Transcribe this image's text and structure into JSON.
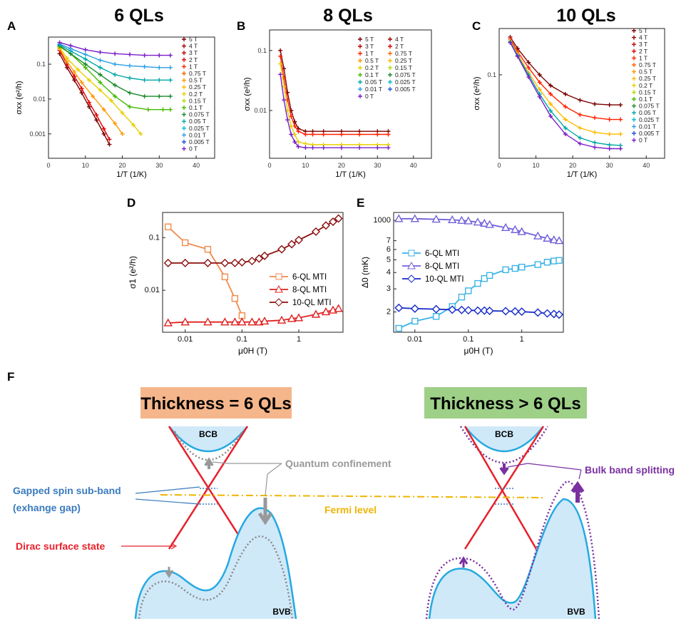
{
  "colors": {
    "fields": {
      "5 T": "#7a0000",
      "4 T": "#a00000",
      "3 T": "#c00000",
      "2 T": "#e00000",
      "1 T": "#ff2200",
      "0.75 T": "#ff6600",
      "0.5 T": "#ff9900",
      "0.25 T": "#ffbb00",
      "0.2 T": "#e8d000",
      "0.15 T": "#aee000",
      "0.1 T": "#44bb00",
      "0.075 T": "#1a8a2a",
      "0.05 T": "#00a8a8",
      "0.025 T": "#00bcd4",
      "0.01 T": "#2aa0e8",
      "0.005 T": "#2255dd",
      "0 T": "#7a1fc8"
    },
    "s6": "#f08a4b",
    "s8": "#e02020",
    "s10": "#8b0d0d",
    "d6": "#3ab4e6",
    "d8": "#7060d8",
    "d10": "#1428c8",
    "cone": "#e8202a",
    "band": "#26a9e0",
    "bandFill": "#cfe9f9",
    "dotted": "#888888",
    "purple": "#7a30a0",
    "fermi": "#f0b400",
    "gap": "#3a7bbf",
    "banner6": "#f5b68b",
    "banner10": "#9ed088"
  },
  "panels": {
    "A": {
      "label": "A",
      "title": "6 QLs"
    },
    "B": {
      "label": "B",
      "title": "8 QLs"
    },
    "C": {
      "label": "C",
      "title": "10 QLs"
    },
    "D": {
      "label": "D"
    },
    "E": {
      "label": "E"
    },
    "F": {
      "label": "F"
    }
  },
  "chart_data": [
    {
      "id": "A",
      "type": "scatter",
      "title": "6 QLs",
      "xlabel": "1/T (1/K)",
      "ylabel": "σxx (e²/h)",
      "yscale": "log",
      "xlim": [
        0,
        45
      ],
      "ylim": [
        0.0002,
        0.6
      ],
      "xticks": [
        "0",
        "10",
        "20",
        "30",
        "40"
      ],
      "yticks": [
        "0.001",
        "0.01",
        "0.1"
      ],
      "legend": [
        "5 T",
        "4 T",
        "3 T",
        "2 T",
        "1 T",
        "0.75 T",
        "0.5 T",
        "0.25 T",
        "0.2 T",
        "0.15 T",
        "0.1 T",
        "0.075 T",
        "0.05 T",
        "0.025 T",
        "0.01 T",
        "0.005 T",
        "0 T"
      ],
      "series": [
        {
          "name": "5 T",
          "x": [
            3,
            5,
            7,
            9,
            11,
            13,
            15,
            16.5
          ],
          "y": [
            0.2,
            0.08,
            0.035,
            0.015,
            0.006,
            0.0025,
            0.001,
            0.0005
          ]
        },
        {
          "name": "2 T",
          "x": [
            3,
            5,
            7,
            9,
            11,
            13,
            15,
            16.5
          ],
          "y": [
            0.25,
            0.1,
            0.045,
            0.02,
            0.008,
            0.0035,
            0.0014,
            0.0007
          ]
        },
        {
          "name": "0.5 T",
          "x": [
            3,
            5,
            7,
            9,
            12,
            15,
            18,
            20
          ],
          "y": [
            0.28,
            0.12,
            0.06,
            0.03,
            0.012,
            0.005,
            0.002,
            0.001
          ]
        },
        {
          "name": "0.2 T",
          "x": [
            3,
            5,
            8,
            11,
            14,
            17,
            20,
            23,
            25
          ],
          "y": [
            0.3,
            0.15,
            0.07,
            0.035,
            0.018,
            0.009,
            0.004,
            0.0018,
            0.001
          ]
        },
        {
          "name": "0.1 T",
          "x": [
            3,
            6,
            10,
            14,
            18,
            22,
            27,
            31,
            33
          ],
          "y": [
            0.32,
            0.2,
            0.08,
            0.03,
            0.012,
            0.006,
            0.005,
            0.005,
            0.005
          ]
        },
        {
          "name": "0.075 T",
          "x": [
            3,
            6,
            10,
            14,
            18,
            22,
            26,
            30,
            33
          ],
          "y": [
            0.34,
            0.2,
            0.1,
            0.05,
            0.025,
            0.015,
            0.012,
            0.012,
            0.012
          ]
        },
        {
          "name": "0.05 T",
          "x": [
            3,
            6,
            10,
            14,
            18,
            22,
            26,
            30,
            33
          ],
          "y": [
            0.36,
            0.24,
            0.14,
            0.08,
            0.05,
            0.04,
            0.035,
            0.035,
            0.035
          ]
        },
        {
          "name": "0.01 T",
          "x": [
            3,
            6,
            10,
            14,
            18,
            22,
            26,
            30,
            33
          ],
          "y": [
            0.38,
            0.28,
            0.19,
            0.13,
            0.1,
            0.09,
            0.085,
            0.08,
            0.08
          ]
        },
        {
          "name": "0 T",
          "x": [
            3,
            6,
            10,
            14,
            18,
            22,
            26,
            30,
            33
          ],
          "y": [
            0.42,
            0.34,
            0.26,
            0.22,
            0.2,
            0.19,
            0.18,
            0.18,
            0.18
          ]
        }
      ]
    },
    {
      "id": "B",
      "type": "scatter",
      "title": "8 QLs",
      "xlabel": "1/T (1/K)",
      "ylabel": "σxx (e²/h)",
      "yscale": "log",
      "xlim": [
        0,
        45
      ],
      "ylim": [
        0.0016,
        0.22
      ],
      "xticks": [
        "0",
        "10",
        "20",
        "30",
        "40"
      ],
      "yticks": [
        "0.01",
        "0.1"
      ],
      "legend": [
        "5 T",
        "4 T",
        "3 T",
        "2 T",
        "1 T",
        "0.75 T",
        "0.5 T",
        "0.25 T",
        "0.2 T",
        "0.15 T",
        "0.1 T",
        "0.075 T",
        "0.05 T",
        "0.025 T",
        "0.01 T",
        "0.005 T",
        "0 T"
      ],
      "series": [
        {
          "name": "5 T",
          "x": [
            3,
            4,
            5,
            6,
            7,
            8,
            10,
            12,
            15,
            20,
            25,
            30,
            33
          ],
          "y": [
            0.1,
            0.05,
            0.02,
            0.01,
            0.0065,
            0.005,
            0.0045,
            0.0045,
            0.0045,
            0.0045,
            0.0045,
            0.0045,
            0.0045
          ]
        },
        {
          "name": "1 T",
          "x": [
            3,
            4,
            5,
            6,
            7,
            8,
            10,
            12,
            15,
            20,
            25,
            30,
            33
          ],
          "y": [
            0.08,
            0.035,
            0.015,
            0.008,
            0.0055,
            0.0045,
            0.004,
            0.004,
            0.004,
            0.004,
            0.004,
            0.004,
            0.004
          ]
        },
        {
          "name": "0.2 T",
          "x": [
            3,
            4,
            5,
            6,
            7,
            8,
            10,
            12,
            15,
            20,
            25,
            30,
            33
          ],
          "y": [
            0.06,
            0.025,
            0.01,
            0.0055,
            0.004,
            0.003,
            0.0028,
            0.0027,
            0.0027,
            0.0027,
            0.0027,
            0.0027,
            0.0027
          ]
        },
        {
          "name": "0 T",
          "x": [
            3,
            4,
            5,
            6,
            7,
            8,
            10,
            12,
            15,
            20,
            25,
            30,
            33
          ],
          "y": [
            0.04,
            0.015,
            0.007,
            0.004,
            0.003,
            0.0025,
            0.0024,
            0.0024,
            0.0024,
            0.0024,
            0.0024,
            0.0024,
            0.0024
          ]
        }
      ]
    },
    {
      "id": "C",
      "type": "scatter",
      "title": "10 QLs",
      "xlabel": "1/T (1/K)",
      "ylabel": "σxx (e²/h)",
      "yscale": "log",
      "xlim": [
        0,
        45
      ],
      "ylim": [
        0.0019,
        0.9
      ],
      "xticks": [
        "0",
        "10",
        "20",
        "30",
        "40"
      ],
      "yticks": [
        "0.1"
      ],
      "legend": [
        "5 T",
        "4 T",
        "3 T",
        "2 T",
        "1 T",
        "0.75 T",
        "0.5 T",
        "0.25 T",
        "0.2 T",
        "0.15 T",
        "0.1 T",
        "0.075 T",
        "0.05 T",
        "0.025 T",
        "0.01 T",
        "0.005 T",
        "0 T"
      ],
      "series": [
        {
          "name": "5 T",
          "x": [
            3,
            5,
            8,
            11,
            14,
            18,
            22,
            26,
            30,
            33
          ],
          "y": [
            0.6,
            0.35,
            0.18,
            0.1,
            0.06,
            0.04,
            0.03,
            0.025,
            0.024,
            0.024
          ]
        },
        {
          "name": "1 T",
          "x": [
            3,
            5,
            8,
            11,
            14,
            18,
            22,
            26,
            30,
            33
          ],
          "y": [
            0.55,
            0.3,
            0.14,
            0.07,
            0.04,
            0.022,
            0.015,
            0.013,
            0.012,
            0.012
          ]
        },
        {
          "name": "0.25 T",
          "x": [
            3,
            5,
            8,
            11,
            14,
            18,
            22,
            26,
            30,
            33
          ],
          "y": [
            0.5,
            0.27,
            0.11,
            0.05,
            0.025,
            0.012,
            0.008,
            0.0065,
            0.006,
            0.006
          ]
        },
        {
          "name": "0.05 T",
          "x": [
            3,
            5,
            8,
            11,
            14,
            18,
            22,
            26,
            30,
            33
          ],
          "y": [
            0.48,
            0.25,
            0.1,
            0.04,
            0.018,
            0.008,
            0.005,
            0.004,
            0.0036,
            0.0035
          ]
        },
        {
          "name": "0 T",
          "x": [
            3,
            5,
            8,
            11,
            14,
            18,
            22,
            26,
            30,
            33
          ],
          "y": [
            0.46,
            0.24,
            0.09,
            0.035,
            0.014,
            0.006,
            0.0038,
            0.0032,
            0.003,
            0.003
          ]
        }
      ]
    },
    {
      "id": "D",
      "type": "line",
      "xlabel": "μ0H (T)",
      "ylabel": "σ1 (e²/h)",
      "xscale": "log",
      "yscale": "log",
      "xlim": [
        0.004,
        6
      ],
      "ylim": [
        0.0016,
        0.3
      ],
      "xticks": [
        "0.01",
        "0.1",
        "1"
      ],
      "yticks": [
        "0.01",
        "0.1"
      ],
      "series": [
        {
          "name": "6-QL MTI",
          "x": [
            0.005,
            0.01,
            0.025,
            0.05,
            0.075,
            0.1
          ],
          "y": [
            0.16,
            0.08,
            0.06,
            0.018,
            0.007,
            0.0033
          ]
        },
        {
          "name": "8-QL MTI",
          "x": [
            0.005,
            0.01,
            0.025,
            0.05,
            0.075,
            0.1,
            0.15,
            0.2,
            0.25,
            0.5,
            0.75,
            1,
            2,
            3,
            4,
            5
          ],
          "y": [
            0.0024,
            0.0025,
            0.0025,
            0.0025,
            0.0025,
            0.0025,
            0.0025,
            0.0025,
            0.0026,
            0.0027,
            0.0029,
            0.003,
            0.0035,
            0.0039,
            0.0042,
            0.0045
          ]
        },
        {
          "name": "10-QL MTI",
          "x": [
            0.005,
            0.01,
            0.025,
            0.05,
            0.075,
            0.1,
            0.15,
            0.2,
            0.25,
            0.5,
            0.75,
            1,
            2,
            3,
            4,
            5
          ],
          "y": [
            0.033,
            0.033,
            0.033,
            0.033,
            0.033,
            0.034,
            0.036,
            0.04,
            0.045,
            0.06,
            0.075,
            0.09,
            0.13,
            0.17,
            0.2,
            0.23
          ]
        }
      ]
    },
    {
      "id": "E",
      "type": "line",
      "xlabel": "μ0H (T)",
      "ylabel": "Δ0 (mK)",
      "xscale": "log",
      "yscale": "log",
      "xlim": [
        0.004,
        6
      ],
      "ylim": [
        140,
        1150
      ],
      "xticks": [
        "0.01",
        "0.1",
        "1"
      ],
      "yticks": [
        "1000",
        "2",
        "3",
        "4",
        "5",
        "6",
        "7"
      ],
      "series": [
        {
          "name": "6-QL MTI",
          "x": [
            0.005,
            0.01,
            0.025,
            0.05,
            0.075,
            0.1,
            0.15,
            0.2,
            0.25,
            0.5,
            0.75,
            1,
            2,
            3,
            4,
            5
          ],
          "y": [
            150,
            170,
            185,
            220,
            260,
            290,
            330,
            360,
            380,
            420,
            430,
            440,
            460,
            480,
            490,
            495
          ]
        },
        {
          "name": "8-QL MTI",
          "x": [
            0.005,
            0.01,
            0.025,
            0.05,
            0.075,
            0.1,
            0.15,
            0.2,
            0.25,
            0.5,
            0.75,
            1,
            2,
            3,
            4,
            5
          ],
          "y": [
            1030,
            1030,
            1020,
            1010,
            1000,
            990,
            970,
            950,
            930,
            880,
            850,
            820,
            760,
            730,
            710,
            700
          ]
        },
        {
          "name": "10-QL MTI",
          "x": [
            0.005,
            0.01,
            0.025,
            0.05,
            0.075,
            0.1,
            0.15,
            0.2,
            0.25,
            0.5,
            0.75,
            1,
            2,
            3,
            4,
            5
          ],
          "y": [
            215,
            212,
            210,
            208,
            207,
            206,
            205,
            205,
            204,
            203,
            202,
            201,
            198,
            195,
            193,
            191
          ]
        }
      ]
    }
  ],
  "schematic": {
    "banner_left": "Thickness = 6 QLs",
    "banner_right": "Thickness > 6 QLs",
    "bcb": "BCB",
    "bvb": "BVB",
    "quantum_confinement": "Quantum confinement",
    "bulk_band_splitting": "Bulk band splitting",
    "gapped_line1": "Gapped spin sub-band",
    "gapped_line2": "(exhange gap)",
    "fermi_level": "Fermi level",
    "dirac_surface": "Dirac surface state"
  }
}
